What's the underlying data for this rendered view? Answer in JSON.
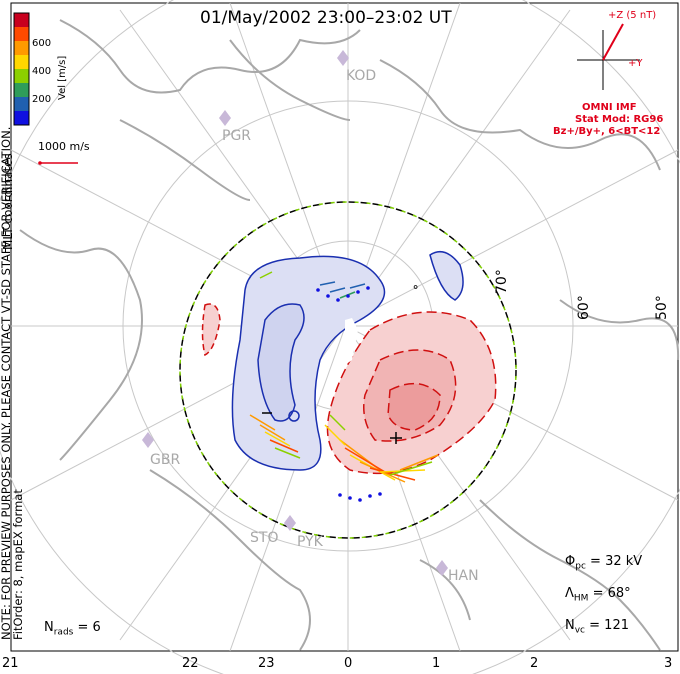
{
  "header": {
    "title": "01/May/2002 23:00–23:02 UT",
    "coord_system": "MLT coordinates"
  },
  "colorbar": {
    "label": "Vel [m/s]",
    "ticks": [
      "600",
      "400",
      "200"
    ],
    "colors": [
      "#c8001e",
      "#ff4a00",
      "#ff9a00",
      "#ffd700",
      "#8cd000",
      "#2f9d5a",
      "#2060b0",
      "#1010e0"
    ]
  },
  "scale": {
    "label": "1000 m/s",
    "color": "#e0001a"
  },
  "imf": {
    "z_label": "+Z (5 nT)",
    "y_label": "+Y",
    "source": "OMNI IMF",
    "model": "Stat Mod: RG96",
    "condition": "Bz+/By+, 6<BT<12"
  },
  "latitudes": [
    "70°",
    "60°",
    "50°"
  ],
  "stations": [
    {
      "id": "kod",
      "label": "KOD"
    },
    {
      "id": "pgr",
      "label": "PGR"
    },
    {
      "id": "gbr",
      "label": "GBR"
    },
    {
      "id": "sto",
      "label": "STO"
    },
    {
      "id": "pyk",
      "label": "PYK"
    },
    {
      "id": "han",
      "label": "HAN"
    }
  ],
  "stats": {
    "phi_pc": "Φ",
    "phi_sub": "pc",
    "phi_val": " = 32 kV",
    "lambda": "Λ",
    "lambda_sub": "HM",
    "lambda_val": " = 68°",
    "nvc": "N",
    "nvc_sub": "vc",
    "nvc_val": " = 121",
    "nrads": "N",
    "nrads_sub": "rads",
    "nrads_val": " = 6"
  },
  "note": {
    "line1": "NOTE: FOR PREVIEW PURPOSES ONLY. PLEASE CONTACT VT-SD STAFF FOR VERIFICATION.",
    "line2": "FitOrder: 8, mapEX format"
  },
  "mlt_labels": [
    "21",
    "22",
    "23",
    "0",
    "1",
    "2",
    "3"
  ],
  "markers": {
    "min": "−",
    "max": "+"
  }
}
